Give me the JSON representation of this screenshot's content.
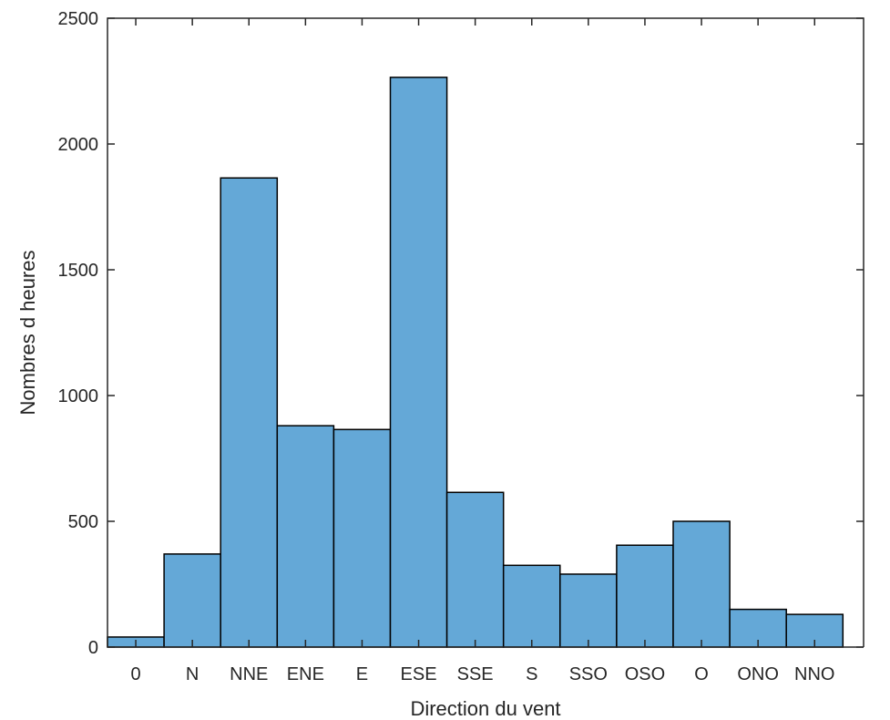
{
  "chart_data": {
    "type": "bar",
    "title": "",
    "xlabel": "Direction du vent",
    "ylabel": "Nombres d heures",
    "categories": [
      "0",
      "N",
      "NNE",
      "ENE",
      "E",
      "ESE",
      "SSE",
      "S",
      "SSO",
      "OSO",
      "O",
      "ONO",
      "NNO"
    ],
    "values": [
      40,
      370,
      1865,
      880,
      865,
      2265,
      615,
      325,
      290,
      405,
      500,
      150,
      130
    ],
    "ylim": [
      0,
      2500
    ],
    "yticks": [
      0,
      500,
      1000,
      1500,
      2000,
      2500
    ],
    "bar_color": "#64a8d7",
    "edge_color": "#000000",
    "grid": false,
    "legend": "none"
  }
}
